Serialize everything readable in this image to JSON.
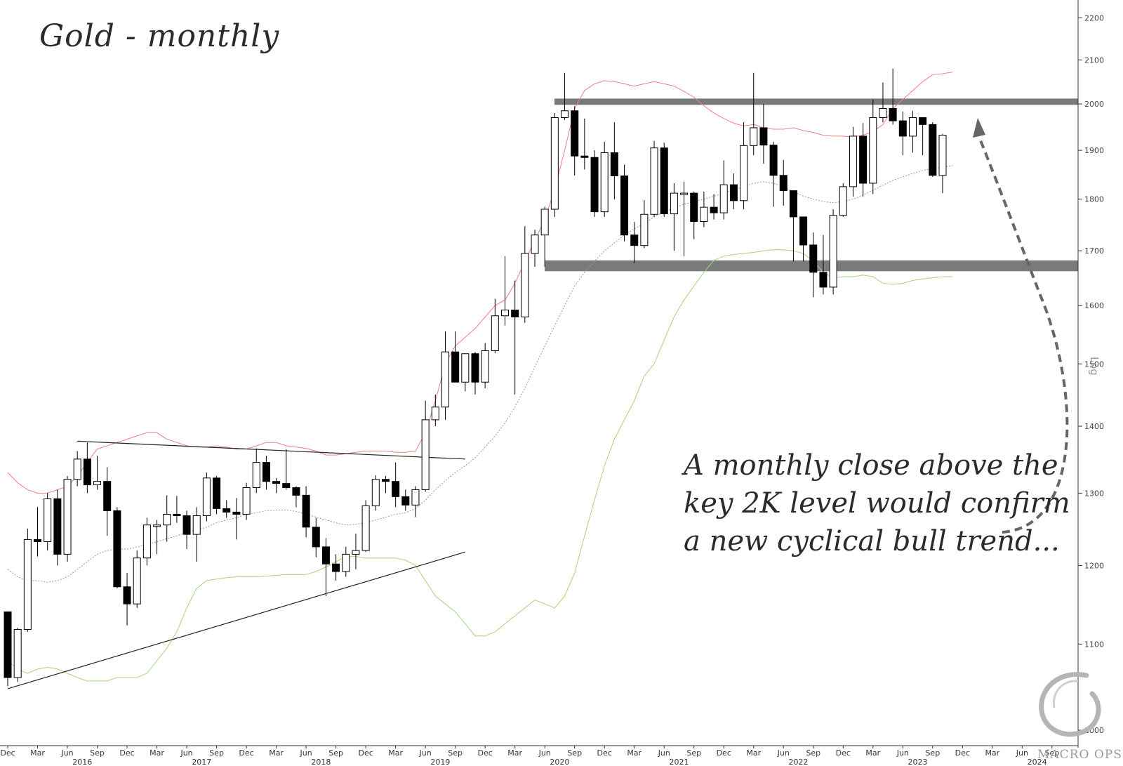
{
  "title": "Gold - monthly",
  "annotation": "A monthly close above the key 2K level would confirm a new cyclical bull trend...",
  "side_label": "Log",
  "logo_text": "MACRO OPS",
  "chart_data": {
    "type": "candlestick",
    "title": "Gold - monthly",
    "scale": "log",
    "ylim": [
      1000,
      2230
    ],
    "y_ticks": [
      1000,
      1100,
      1200,
      1300,
      1400,
      1500,
      1600,
      1700,
      1800,
      1900,
      2000,
      2100,
      2200
    ],
    "month_labels": [
      "Dec",
      "Mar",
      "Jun",
      "Sep",
      "Dec",
      "Mar",
      "Jun",
      "Sep",
      "Dec",
      "Mar",
      "Jun",
      "Sep",
      "Dec",
      "Mar",
      "Jun",
      "Sep",
      "Dec",
      "Mar",
      "Jun",
      "Sep",
      "Dec",
      "Mar",
      "Jun",
      "Sep",
      "Dec",
      "Mar",
      "Jun",
      "Sep",
      "Dec",
      "Mar",
      "Jun",
      "Sep",
      "Dec",
      "Mar",
      "Jun",
      "Sep"
    ],
    "year_labels": [
      "2016",
      "2017",
      "2018",
      "2019",
      "2020",
      "2021",
      "2022",
      "2023",
      "2024"
    ],
    "candles": [
      {
        "o": 1140,
        "h": 1140,
        "l": 1050,
        "c": 1060
      },
      {
        "o": 1060,
        "h": 1120,
        "l": 1055,
        "c": 1118
      },
      {
        "o": 1118,
        "h": 1250,
        "l": 1115,
        "c": 1235
      },
      {
        "o": 1235,
        "h": 1280,
        "l": 1212,
        "c": 1232
      },
      {
        "o": 1232,
        "h": 1300,
        "l": 1220,
        "c": 1292
      },
      {
        "o": 1292,
        "h": 1305,
        "l": 1200,
        "c": 1215
      },
      {
        "o": 1215,
        "h": 1325,
        "l": 1205,
        "c": 1320
      },
      {
        "o": 1320,
        "h": 1362,
        "l": 1310,
        "c": 1350
      },
      {
        "o": 1350,
        "h": 1375,
        "l": 1300,
        "c": 1312
      },
      {
        "o": 1312,
        "h": 1355,
        "l": 1305,
        "c": 1317
      },
      {
        "o": 1317,
        "h": 1338,
        "l": 1240,
        "c": 1275
      },
      {
        "o": 1275,
        "h": 1280,
        "l": 1170,
        "c": 1172
      },
      {
        "o": 1172,
        "h": 1190,
        "l": 1123,
        "c": 1150
      },
      {
        "o": 1150,
        "h": 1220,
        "l": 1145,
        "c": 1210
      },
      {
        "o": 1210,
        "h": 1265,
        "l": 1200,
        "c": 1255
      },
      {
        "o": 1255,
        "h": 1262,
        "l": 1215,
        "c": 1255
      },
      {
        "o": 1255,
        "h": 1297,
        "l": 1232,
        "c": 1270
      },
      {
        "o": 1270,
        "h": 1296,
        "l": 1258,
        "c": 1268
      },
      {
        "o": 1268,
        "h": 1275,
        "l": 1222,
        "c": 1242
      },
      {
        "o": 1242,
        "h": 1280,
        "l": 1205,
        "c": 1268
      },
      {
        "o": 1268,
        "h": 1330,
        "l": 1260,
        "c": 1322
      },
      {
        "o": 1322,
        "h": 1325,
        "l": 1270,
        "c": 1278
      },
      {
        "o": 1278,
        "h": 1290,
        "l": 1265,
        "c": 1273
      },
      {
        "o": 1273,
        "h": 1293,
        "l": 1235,
        "c": 1270
      },
      {
        "o": 1270,
        "h": 1315,
        "l": 1262,
        "c": 1308
      },
      {
        "o": 1308,
        "h": 1366,
        "l": 1300,
        "c": 1345
      },
      {
        "o": 1345,
        "h": 1355,
        "l": 1305,
        "c": 1317
      },
      {
        "o": 1317,
        "h": 1322,
        "l": 1300,
        "c": 1314
      },
      {
        "o": 1314,
        "h": 1365,
        "l": 1305,
        "c": 1308
      },
      {
        "o": 1308,
        "h": 1310,
        "l": 1280,
        "c": 1297
      },
      {
        "o": 1297,
        "h": 1310,
        "l": 1238,
        "c": 1252
      },
      {
        "o": 1252,
        "h": 1265,
        "l": 1211,
        "c": 1225
      },
      {
        "o": 1225,
        "h": 1237,
        "l": 1160,
        "c": 1202
      },
      {
        "o": 1202,
        "h": 1215,
        "l": 1180,
        "c": 1192
      },
      {
        "o": 1192,
        "h": 1225,
        "l": 1185,
        "c": 1215
      },
      {
        "o": 1215,
        "h": 1243,
        "l": 1195,
        "c": 1220
      },
      {
        "o": 1220,
        "h": 1290,
        "l": 1218,
        "c": 1282
      },
      {
        "o": 1282,
        "h": 1326,
        "l": 1275,
        "c": 1320
      },
      {
        "o": 1320,
        "h": 1325,
        "l": 1300,
        "c": 1317
      },
      {
        "o": 1317,
        "h": 1345,
        "l": 1280,
        "c": 1295
      },
      {
        "o": 1295,
        "h": 1305,
        "l": 1275,
        "c": 1283
      },
      {
        "o": 1283,
        "h": 1310,
        "l": 1266,
        "c": 1305
      },
      {
        "o": 1305,
        "h": 1440,
        "l": 1302,
        "c": 1410
      },
      {
        "o": 1410,
        "h": 1450,
        "l": 1400,
        "c": 1430
      },
      {
        "o": 1430,
        "h": 1555,
        "l": 1410,
        "c": 1520
      },
      {
        "o": 1520,
        "h": 1555,
        "l": 1470,
        "c": 1470
      },
      {
        "o": 1470,
        "h": 1515,
        "l": 1455,
        "c": 1517
      },
      {
        "o": 1517,
        "h": 1520,
        "l": 1450,
        "c": 1470
      },
      {
        "o": 1470,
        "h": 1535,
        "l": 1460,
        "c": 1522
      },
      {
        "o": 1522,
        "h": 1612,
        "l": 1518,
        "c": 1582
      },
      {
        "o": 1582,
        "h": 1690,
        "l": 1565,
        "c": 1592
      },
      {
        "o": 1592,
        "h": 1645,
        "l": 1450,
        "c": 1580
      },
      {
        "o": 1580,
        "h": 1747,
        "l": 1570,
        "c": 1695
      },
      {
        "o": 1695,
        "h": 1740,
        "l": 1670,
        "c": 1730
      },
      {
        "o": 1730,
        "h": 1785,
        "l": 1670,
        "c": 1780
      },
      {
        "o": 1780,
        "h": 1980,
        "l": 1765,
        "c": 1970
      },
      {
        "o": 1970,
        "h": 2070,
        "l": 1965,
        "c": 1985
      },
      {
        "o": 1985,
        "h": 1995,
        "l": 1848,
        "c": 1888
      },
      {
        "o": 1888,
        "h": 1968,
        "l": 1860,
        "c": 1885
      },
      {
        "o": 1885,
        "h": 1900,
        "l": 1765,
        "c": 1775
      },
      {
        "o": 1775,
        "h": 1918,
        "l": 1765,
        "c": 1895
      },
      {
        "o": 1895,
        "h": 1960,
        "l": 1800,
        "c": 1847
      },
      {
        "o": 1847,
        "h": 1870,
        "l": 1718,
        "c": 1730
      },
      {
        "o": 1730,
        "h": 1755,
        "l": 1677,
        "c": 1710
      },
      {
        "o": 1710,
        "h": 1798,
        "l": 1705,
        "c": 1770
      },
      {
        "o": 1770,
        "h": 1920,
        "l": 1765,
        "c": 1905
      },
      {
        "o": 1905,
        "h": 1916,
        "l": 1765,
        "c": 1771
      },
      {
        "o": 1771,
        "h": 1832,
        "l": 1700,
        "c": 1812
      },
      {
        "o": 1812,
        "h": 1835,
        "l": 1690,
        "c": 1812
      },
      {
        "o": 1812,
        "h": 1815,
        "l": 1722,
        "c": 1756
      },
      {
        "o": 1756,
        "h": 1815,
        "l": 1745,
        "c": 1784
      },
      {
        "o": 1784,
        "h": 1810,
        "l": 1760,
        "c": 1773
      },
      {
        "o": 1773,
        "h": 1879,
        "l": 1760,
        "c": 1829
      },
      {
        "o": 1829,
        "h": 1852,
        "l": 1780,
        "c": 1797
      },
      {
        "o": 1797,
        "h": 1960,
        "l": 1780,
        "c": 1910
      },
      {
        "o": 1910,
        "h": 2070,
        "l": 1890,
        "c": 1948
      },
      {
        "o": 1948,
        "h": 2000,
        "l": 1872,
        "c": 1911
      },
      {
        "o": 1911,
        "h": 1918,
        "l": 1785,
        "c": 1848
      },
      {
        "o": 1848,
        "h": 1880,
        "l": 1787,
        "c": 1817
      },
      {
        "o": 1817,
        "h": 1814,
        "l": 1680,
        "c": 1765
      },
      {
        "o": 1765,
        "h": 1765,
        "l": 1680,
        "c": 1711
      },
      {
        "o": 1711,
        "h": 1735,
        "l": 1615,
        "c": 1660
      },
      {
        "o": 1660,
        "h": 1730,
        "l": 1620,
        "c": 1633
      },
      {
        "o": 1633,
        "h": 1780,
        "l": 1620,
        "c": 1768
      },
      {
        "o": 1768,
        "h": 1832,
        "l": 1765,
        "c": 1825
      },
      {
        "o": 1825,
        "h": 1950,
        "l": 1805,
        "c": 1930
      },
      {
        "o": 1930,
        "h": 1958,
        "l": 1805,
        "c": 1832
      },
      {
        "o": 1832,
        "h": 2010,
        "l": 1810,
        "c": 1970
      },
      {
        "o": 1970,
        "h": 2048,
        "l": 1960,
        "c": 1990
      },
      {
        "o": 1990,
        "h": 2080,
        "l": 1955,
        "c": 1963
      },
      {
        "o": 1963,
        "h": 1983,
        "l": 1890,
        "c": 1930
      },
      {
        "o": 1930,
        "h": 1985,
        "l": 1895,
        "c": 1970
      },
      {
        "o": 1970,
        "h": 1965,
        "l": 1890,
        "c": 1955
      },
      {
        "o": 1955,
        "h": 1960,
        "l": 1845,
        "c": 1848
      },
      {
        "o": 1848,
        "h": 1935,
        "l": 1812,
        "c": 1932
      }
    ],
    "upper_band": [
      1330,
      1315,
      1305,
      1300,
      1300,
      1305,
      1310,
      1325,
      1345,
      1365,
      1370,
      1375,
      1380,
      1385,
      1390,
      1390,
      1380,
      1375,
      1370,
      1368,
      1368,
      1370,
      1368,
      1365,
      1365,
      1370,
      1375,
      1375,
      1370,
      1368,
      1366,
      1362,
      1356,
      1356,
      1358,
      1360,
      1362,
      1362,
      1362,
      1360,
      1360,
      1362,
      1390,
      1440,
      1500,
      1530,
      1545,
      1560,
      1580,
      1600,
      1610,
      1640,
      1680,
      1720,
      1760,
      1820,
      1900,
      1990,
      2030,
      2045,
      2052,
      2050,
      2045,
      2040,
      2045,
      2050,
      2045,
      2040,
      2028,
      2015,
      1996,
      1980,
      1968,
      1958,
      1952,
      1955,
      1948,
      1945,
      1945,
      1948,
      1942,
      1938,
      1932,
      1930,
      1930,
      1928,
      1932,
      1940,
      1955,
      1990,
      2010,
      2030,
      2050,
      2066,
      2068,
      2072
    ],
    "middle_band": [
      1195,
      1185,
      1180,
      1180,
      1178,
      1180,
      1185,
      1195,
      1205,
      1215,
      1220,
      1222,
      1222,
      1225,
      1228,
      1232,
      1236,
      1240,
      1245,
      1248,
      1252,
      1258,
      1262,
      1265,
      1270,
      1272,
      1275,
      1276,
      1276,
      1274,
      1270,
      1266,
      1262,
      1258,
      1255,
      1256,
      1258,
      1262,
      1266,
      1270,
      1272,
      1278,
      1290,
      1305,
      1318,
      1330,
      1340,
      1352,
      1368,
      1385,
      1405,
      1430,
      1460,
      1495,
      1530,
      1565,
      1600,
      1635,
      1660,
      1680,
      1700,
      1715,
      1730,
      1742,
      1752,
      1765,
      1775,
      1782,
      1790,
      1795,
      1800,
      1806,
      1812,
      1818,
      1825,
      1832,
      1835,
      1832,
      1825,
      1815,
      1806,
      1800,
      1795,
      1793,
      1795,
      1800,
      1808,
      1818,
      1828,
      1838,
      1845,
      1852,
      1858,
      1862,
      1865,
      1868
    ],
    "lower_band": [
      1080,
      1070,
      1065,
      1070,
      1072,
      1070,
      1065,
      1060,
      1056,
      1056,
      1056,
      1060,
      1060,
      1060,
      1065,
      1080,
      1095,
      1115,
      1145,
      1170,
      1180,
      1182,
      1184,
      1185,
      1185,
      1185,
      1186,
      1187,
      1188,
      1188,
      1188,
      1192,
      1198,
      1205,
      1212,
      1212,
      1210,
      1210,
      1210,
      1210,
      1207,
      1200,
      1180,
      1160,
      1150,
      1140,
      1125,
      1110,
      1110,
      1115,
      1125,
      1135,
      1145,
      1155,
      1150,
      1145,
      1160,
      1190,
      1240,
      1290,
      1340,
      1380,
      1410,
      1440,
      1480,
      1500,
      1540,
      1580,
      1610,
      1635,
      1660,
      1682,
      1690,
      1693,
      1695,
      1697,
      1700,
      1702,
      1702,
      1700,
      1695,
      1680,
      1660,
      1650,
      1652,
      1652,
      1655,
      1652,
      1640,
      1638,
      1640,
      1645,
      1648,
      1650,
      1652,
      1652
    ],
    "resistance_zone": [
      1998,
      2012
    ],
    "support_zone": [
      1662,
      1682
    ],
    "trendlines": [
      {
        "name": "upper",
        "from": {
          "i": 7,
          "y": 1377
        },
        "to": {
          "i": 46,
          "y": 1350
        }
      },
      {
        "name": "lower",
        "from": {
          "i": 0,
          "y": 1047
        },
        "to": {
          "i": 46,
          "y": 1218
        }
      }
    ],
    "colors": {
      "up_fill": "#ffffff",
      "down_fill": "#000000",
      "upper_band": "#f08080",
      "middle_band": "#999999",
      "lower_band": "#a4d67a",
      "zone": "#7a7a7a"
    }
  }
}
